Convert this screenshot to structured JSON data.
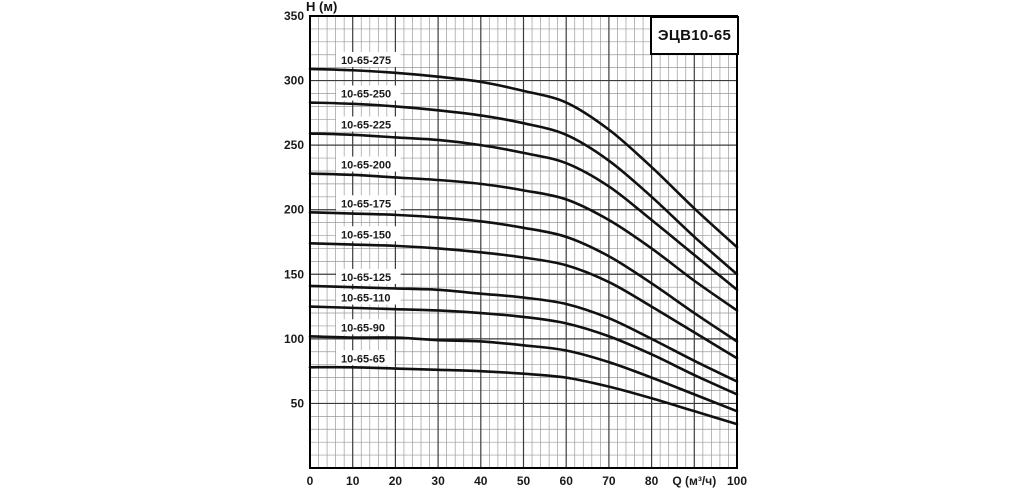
{
  "page": {
    "background": "#ffffff"
  },
  "chart_data": {
    "type": "line",
    "title": "ЭЦВ10-65",
    "ylabel": "Н (м)",
    "xlabel": "Q (м³/ч)",
    "x_range": [
      0,
      100
    ],
    "y_range": [
      0,
      350
    ],
    "x_major_step": 10,
    "x_minor_step": 2,
    "y_major_step": 50,
    "y_minor_step": 10,
    "grid": true,
    "legend_position": "labels-above-curves",
    "x_tick_labels": [
      "0",
      "10",
      "20",
      "30",
      "40",
      "50",
      "60",
      "70",
      "80",
      "",
      "100"
    ],
    "y_tick_labels": [
      "350",
      "300",
      "250",
      "200",
      "150",
      "100",
      "50"
    ],
    "x": [
      0,
      10,
      20,
      30,
      40,
      50,
      60,
      70,
      80,
      90,
      100
    ],
    "series": [
      {
        "name": "10-65-275",
        "values": [
          309,
          308,
          306,
          303,
          299,
          292,
          283,
          262,
          233,
          201,
          171
        ]
      },
      {
        "name": "10-65-250",
        "values": [
          283,
          282,
          280,
          277,
          273,
          267,
          258,
          238,
          210,
          179,
          150
        ]
      },
      {
        "name": "10-65-225",
        "values": [
          259,
          258,
          256,
          254,
          250,
          244,
          236,
          218,
          192,
          165,
          138
        ]
      },
      {
        "name": "10-65-200",
        "values": [
          228,
          227,
          225,
          223,
          220,
          215,
          208,
          192,
          170,
          145,
          122
        ]
      },
      {
        "name": "10-65-175",
        "values": [
          198,
          197,
          196,
          194,
          191,
          186,
          179,
          164,
          143,
          120,
          98
        ]
      },
      {
        "name": "10-65-150",
        "values": [
          174,
          173,
          172,
          170,
          167,
          163,
          157,
          144,
          125,
          105,
          85
        ]
      },
      {
        "name": "10-65-125",
        "values": [
          141,
          140,
          139,
          138,
          135,
          132,
          127,
          116,
          100,
          83,
          67
        ]
      },
      {
        "name": "10-65-110",
        "values": [
          125,
          124,
          123,
          122,
          120,
          117,
          112,
          102,
          88,
          72,
          57
        ]
      },
      {
        "name": "10-65-90",
        "values": [
          102,
          101,
          101,
          99,
          98,
          95,
          91,
          82,
          70,
          57,
          44
        ]
      },
      {
        "name": "10-65-65",
        "values": [
          78,
          78,
          77,
          76,
          75,
          73,
          70,
          63,
          54,
          44,
          34
        ]
      }
    ],
    "colors": {
      "curve": "#111111",
      "grid_minor": "#9a9a9a",
      "grid_major": "#3c3c3c",
      "border": "#000000",
      "text": "#1a1a1a",
      "plot_bg": "#ffffff"
    }
  }
}
